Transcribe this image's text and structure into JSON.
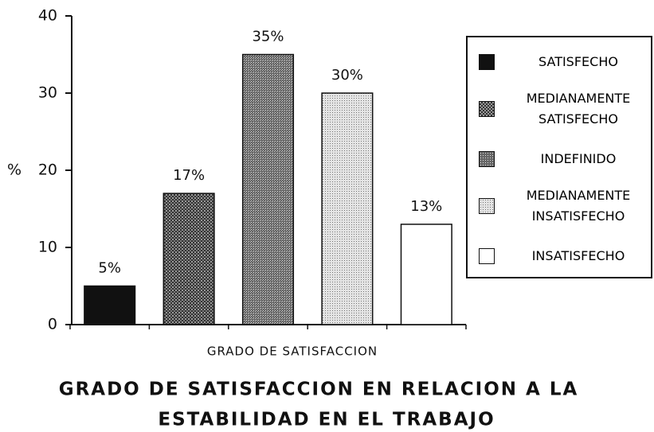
{
  "chart_data": {
    "type": "bar",
    "title": [
      "GRADO DE SATISFACCION EN RELACION A LA",
      "ESTABILIDAD EN EL TRABAJO"
    ],
    "xlabel": "GRADO DE SATISFACCION",
    "ylabel": "%",
    "categories": [
      "SATISFECHO",
      "MEDIANAMENTE SATISFECHO",
      "INDEFINIDO",
      "MEDIANAMENTE INSATISFECHO",
      "INSATISFECHO"
    ],
    "values": [
      5,
      17,
      35,
      30,
      13
    ],
    "value_labels": [
      "5%",
      "17%",
      "35%",
      "30%",
      "13%"
    ],
    "colors": [
      "#111111",
      "url(#dense)",
      "url(#mid)",
      "url(#light)",
      "#ffffff"
    ],
    "ylim": [
      0,
      40
    ],
    "yticks": [
      0,
      10,
      20,
      30,
      40
    ],
    "legend": "right"
  }
}
